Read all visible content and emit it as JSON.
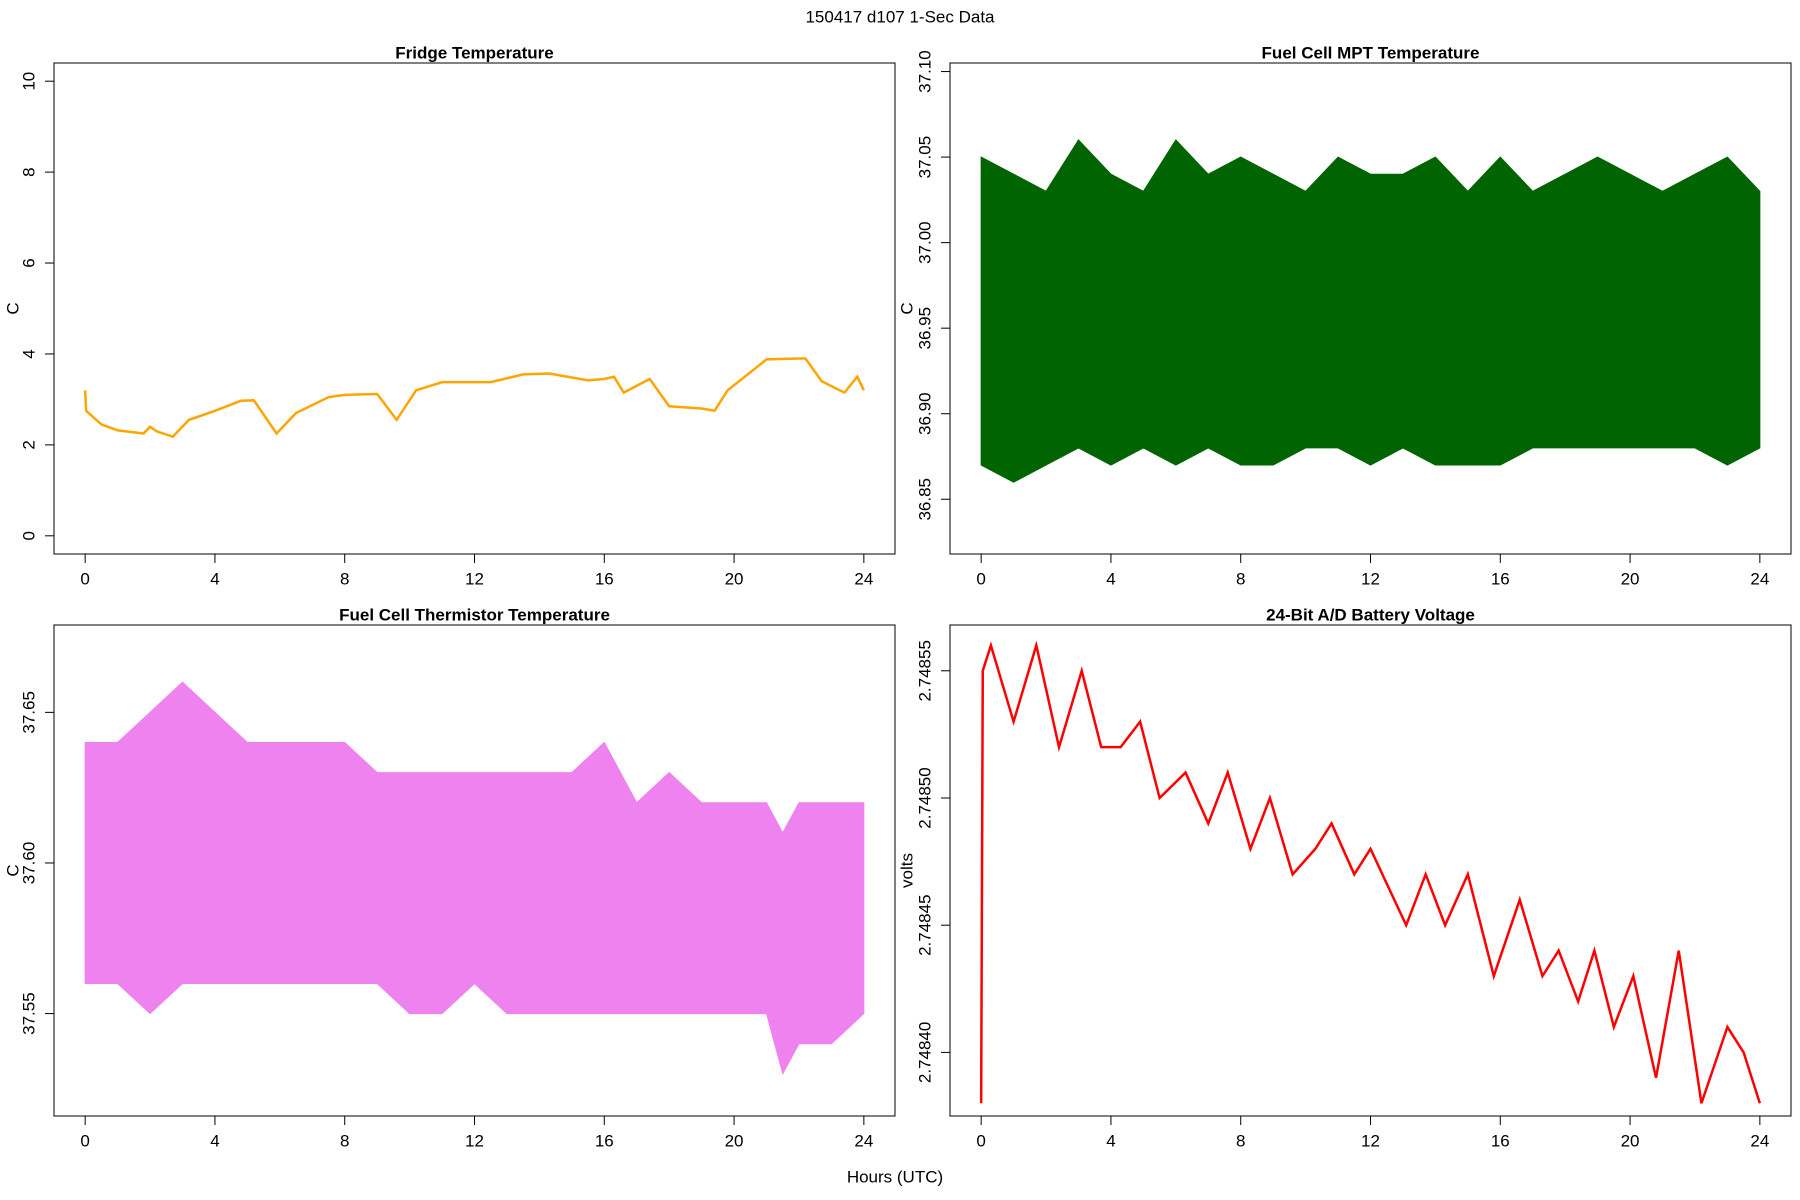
{
  "title": "150417   d107   1-Sec Data",
  "xlabel": "Hours (UTC)",
  "chart_data": [
    {
      "type": "line",
      "title": "Fridge Temperature",
      "ylabel": "C",
      "color": "#ffa500",
      "x": [
        0,
        0.03,
        0.5,
        1,
        1.8,
        2,
        2.2,
        2.7,
        3.2,
        4,
        4.8,
        5.2,
        5.9,
        6.5,
        7.5,
        8,
        9,
        9.6,
        10.2,
        11,
        12,
        12.5,
        13.5,
        14.3,
        15.5,
        16,
        16.3,
        16.6,
        17.4,
        18,
        19,
        19.4,
        19.8,
        21,
        22,
        22.2,
        22.7,
        23.4,
        23.8,
        24
      ],
      "values": [
        3.2,
        2.75,
        2.45,
        2.32,
        2.25,
        2.4,
        2.3,
        2.18,
        2.55,
        2.75,
        2.97,
        2.98,
        2.25,
        2.7,
        3.05,
        3.1,
        3.12,
        2.55,
        3.2,
        3.38,
        3.38,
        3.38,
        3.55,
        3.57,
        3.42,
        3.45,
        3.5,
        3.15,
        3.45,
        2.85,
        2.8,
        2.75,
        3.2,
        3.88,
        3.9,
        3.9,
        3.4,
        3.15,
        3.5,
        3.2
      ],
      "xlim": [
        -0.96,
        24.96
      ],
      "xticks": [
        0,
        4,
        8,
        12,
        16,
        20,
        24
      ],
      "ylim": [
        -0.4,
        10.4
      ],
      "yticks": [
        0,
        2,
        4,
        6,
        8,
        10
      ]
    },
    {
      "type": "band",
      "title": "Fuel Cell MPT Temperature",
      "ylabel": "C",
      "color": "#006400",
      "x": [
        0,
        1,
        2,
        3,
        4,
        5,
        6,
        7,
        8,
        9,
        10,
        11,
        12,
        13,
        14,
        15,
        16,
        17,
        18,
        19,
        20,
        21,
        22,
        23,
        24
      ],
      "upper": [
        37.05,
        37.04,
        37.03,
        37.06,
        37.04,
        37.03,
        37.06,
        37.04,
        37.05,
        37.04,
        37.03,
        37.05,
        37.04,
        37.04,
        37.05,
        37.03,
        37.05,
        37.03,
        37.04,
        37.05,
        37.04,
        37.03,
        37.04,
        37.05,
        37.03
      ],
      "lower": [
        36.87,
        36.86,
        36.87,
        36.88,
        36.87,
        36.88,
        36.87,
        36.88,
        36.87,
        36.87,
        36.88,
        36.88,
        36.87,
        36.88,
        36.87,
        36.87,
        36.87,
        36.88,
        36.88,
        36.88,
        36.88,
        36.88,
        36.88,
        36.87,
        36.88
      ],
      "xlim": [
        -0.96,
        24.96
      ],
      "xticks": [
        0,
        4,
        8,
        12,
        16,
        20,
        24
      ],
      "ylim": [
        36.818,
        37.105
      ],
      "yticks": [
        36.85,
        {
          "value": 36.9,
          "label": "36.90"
        },
        36.95,
        {
          "value": 37,
          "label": "37.00"
        },
        37.05,
        {
          "value": 37.1,
          "label": "37.10"
        }
      ]
    },
    {
      "type": "band",
      "title": "Fuel Cell Thermistor Temperature",
      "ylabel": "C",
      "color": "#ee82ee",
      "x": [
        0,
        1,
        2,
        3,
        4,
        5,
        6,
        7,
        8,
        9,
        10,
        11,
        12,
        13,
        14,
        15,
        16,
        17,
        18,
        19,
        20,
        21,
        21.5,
        22,
        23,
        24
      ],
      "upper": [
        37.64,
        37.64,
        37.65,
        37.66,
        37.65,
        37.64,
        37.64,
        37.64,
        37.64,
        37.63,
        37.63,
        37.63,
        37.63,
        37.63,
        37.63,
        37.63,
        37.64,
        37.62,
        37.63,
        37.62,
        37.62,
        37.62,
        37.61,
        37.62,
        37.62,
        37.62
      ],
      "lower": [
        37.56,
        37.56,
        37.55,
        37.56,
        37.56,
        37.56,
        37.56,
        37.56,
        37.56,
        37.56,
        37.55,
        37.55,
        37.56,
        37.55,
        37.55,
        37.55,
        37.55,
        37.55,
        37.55,
        37.55,
        37.55,
        37.55,
        37.53,
        37.54,
        37.54,
        37.55
      ],
      "xlim": [
        -0.96,
        24.96
      ],
      "xticks": [
        0,
        4,
        8,
        12,
        16,
        20,
        24
      ],
      "ylim": [
        37.516,
        37.679
      ],
      "yticks": [
        37.55,
        {
          "value": 37.6,
          "label": "37.60"
        },
        37.65
      ]
    },
    {
      "type": "line",
      "title": "24-Bit A/D Battery Voltage",
      "ylabel": "volts",
      "color": "#ff0000",
      "x": [
        0,
        0.05,
        0.3,
        1,
        1.7,
        2.4,
        3.1,
        3.7,
        4.3,
        4.9,
        5.5,
        6.3,
        7,
        7.6,
        8.3,
        8.9,
        9.6,
        10.3,
        10.8,
        11.5,
        12,
        13.1,
        13.7,
        14.3,
        15,
        15.8,
        16.6,
        17.3,
        17.8,
        18.4,
        18.9,
        19.5,
        20.1,
        20.8,
        21.5,
        22.2,
        23,
        23.5,
        24
      ],
      "values": [
        2.74838,
        2.74855,
        2.74856,
        2.74853,
        2.74856,
        2.74852,
        2.74855,
        2.74852,
        2.74852,
        2.74853,
        2.7485,
        2.74851,
        2.74849,
        2.74851,
        2.74848,
        2.7485,
        2.74847,
        2.74848,
        2.74849,
        2.74847,
        2.74848,
        2.74845,
        2.74847,
        2.74845,
        2.74847,
        2.74843,
        2.74846,
        2.74843,
        2.74844,
        2.74842,
        2.74844,
        2.74841,
        2.74843,
        2.74839,
        2.74844,
        2.74838,
        2.74841,
        2.7484,
        2.74838
      ],
      "xlim": [
        -0.96,
        24.96
      ],
      "xticks": [
        0,
        4,
        8,
        12,
        16,
        20,
        24
      ],
      "ylim": [
        2.748375,
        2.748568
      ],
      "yticks": [
        {
          "value": 2.7484,
          "label": "2.74840"
        },
        {
          "value": 2.74845,
          "label": "2.74845"
        },
        {
          "value": 2.7485,
          "label": "2.74850"
        },
        {
          "value": 2.74855,
          "label": "2.74855"
        }
      ]
    }
  ]
}
